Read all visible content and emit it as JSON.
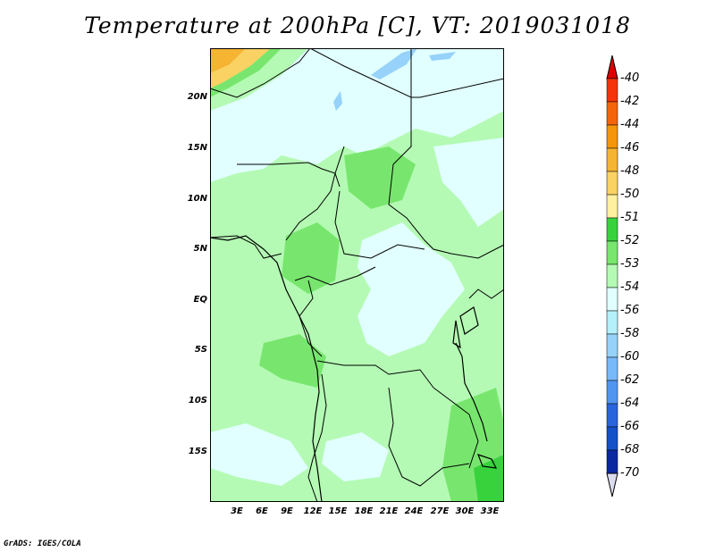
{
  "title": "Temperature at 200hPa [C], VT: 2019031018",
  "credit": "GrADS: IGES/COLA",
  "map": {
    "lat_labels": [
      "20N",
      "15N",
      "10N",
      "5N",
      "EQ",
      "5S",
      "10S",
      "15S"
    ],
    "lon_labels": [
      "3E",
      "6E",
      "9E",
      "12E",
      "15E",
      "18E",
      "21E",
      "24E",
      "27E",
      "30E",
      "33E"
    ]
  },
  "colorbar": {
    "labels": [
      "-40",
      "-42",
      "-44",
      "-46",
      "-48",
      "-50",
      "-51",
      "-52",
      "-53",
      "-54",
      "-56",
      "-58",
      "-60",
      "-62",
      "-64",
      "-66",
      "-68",
      "-70"
    ],
    "colors": [
      "#f5320a",
      "#f5640a",
      "#f5960a",
      "#f5b432",
      "#fad264",
      "#fff0a0",
      "#37d23c",
      "#78e66e",
      "#b4fab4",
      "#e1ffff",
      "#b4f0fa",
      "#96d2fa",
      "#78b9fa",
      "#5096f0",
      "#2864dc",
      "#1450c8",
      "#0a28a0"
    ],
    "top_arrow_color": "#dc0000",
    "bottom_arrow_color": "#dcdcf0"
  }
}
